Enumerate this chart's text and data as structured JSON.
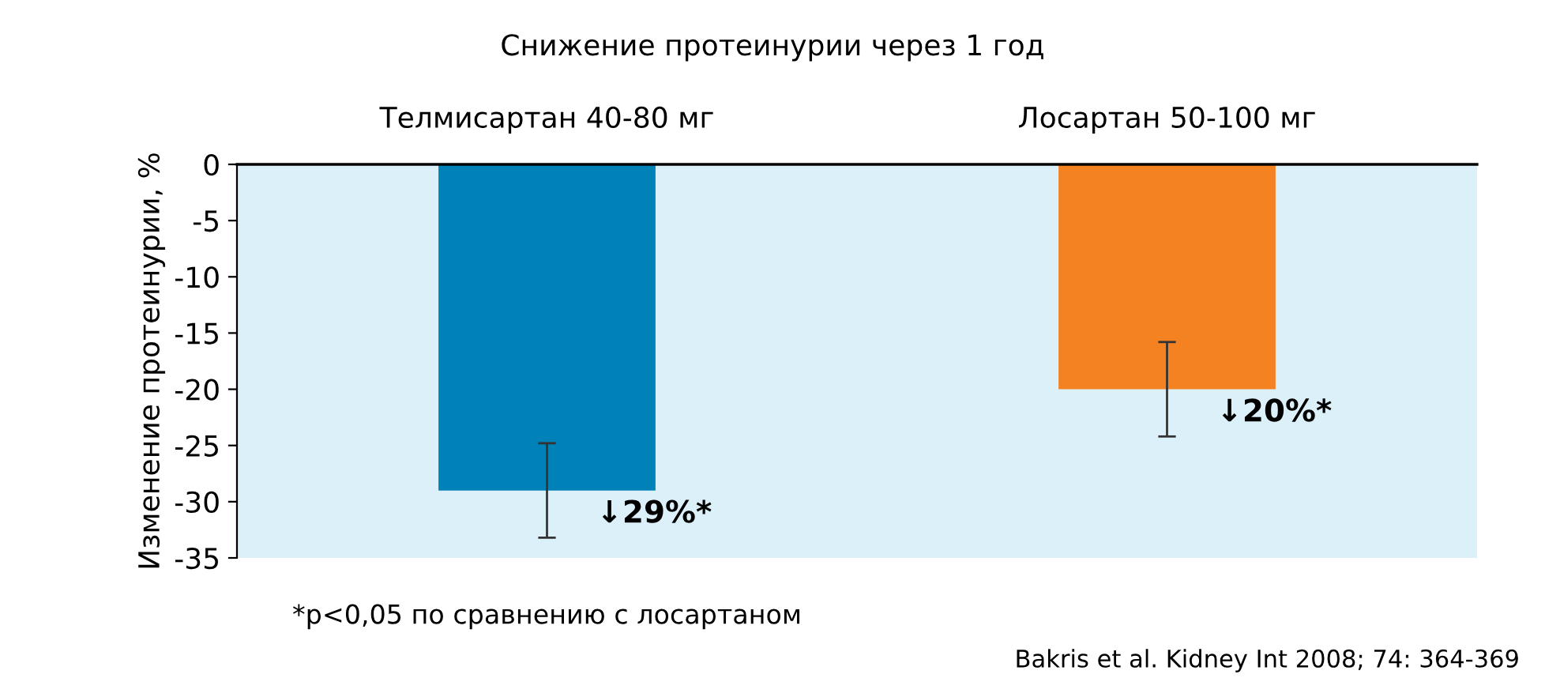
{
  "chart_data": {
    "type": "bar",
    "title": "Снижение протеинурии через 1 год",
    "ylabel": "Изменение протеинурии, %",
    "categories": [
      "Телмисартан 40-80 мг",
      "Лосартан 50-100 мг"
    ],
    "values": [
      -29,
      -20
    ],
    "colors": [
      "#0081b8",
      "#f58220"
    ],
    "errors": [
      4.2,
      4.2
    ],
    "ylim": [
      -35,
      0
    ],
    "yticks": [
      0,
      -5,
      -10,
      -15,
      -20,
      -25,
      -30,
      -35
    ],
    "grid": false,
    "annotations": [
      "*p<0,05 по сравнению с лосартаном",
      "Bakris et al. Kidney Int 2008; 74: 364-369",
      {
        "text": "↓29%*",
        "x": "Телмисартан 40-80 мг",
        "y": -29
      },
      {
        "text": "↓20%*",
        "x": "Лосартан 50-100 мг",
        "y": -20
      }
    ]
  }
}
